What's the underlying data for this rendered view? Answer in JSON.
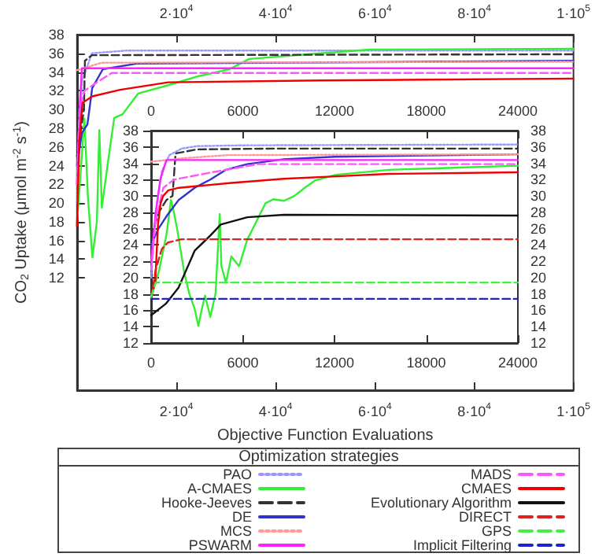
{
  "chart_data": [
    {
      "type": "line",
      "xlabel": "Objective Function Evaluations",
      "ylabel": "CO$_{2}$ Uptake (μmol m$^{-2}$ s$^{-1}$)",
      "xlim": [
        0,
        100000
      ],
      "xticks": [
        {
          "value": 20000,
          "label": "2·10$^{4}$"
        },
        {
          "value": 40000,
          "label": "4·10$^{4}$"
        },
        {
          "value": 60000,
          "label": "6·10$^{4}$"
        },
        {
          "value": 80000,
          "label": "8·10$^{4}$"
        },
        {
          "value": 100000,
          "label": "1·10$^{5}$"
        }
      ],
      "x2lim": [
        0,
        100000
      ],
      "x2ticks": [
        {
          "value": 20000,
          "label": "2·10$^{4}$"
        },
        {
          "value": 40000,
          "label": "4·10$^{4}$"
        },
        {
          "value": 60000,
          "label": "6·10$^{4}$"
        },
        {
          "value": 80000,
          "label": "8·10$^{4}$"
        },
        {
          "value": 100000,
          "label": "1·10$^{5}$"
        }
      ],
      "ylim": [
        0,
        38
      ],
      "yticks": [
        12,
        14,
        16,
        18,
        20,
        22,
        24,
        26,
        28,
        30,
        32,
        34,
        36,
        38
      ],
      "grid": false,
      "legend": false,
      "marker": "none",
      "series": [
        {
          "color": "#9999ff",
          "line_style": "dotted",
          "x": [
            0,
            1000,
            3000,
            10000,
            100000
          ],
          "values": [
            20,
            33,
            36,
            36.3,
            36.3
          ]
        },
        {
          "color": "#33ee33",
          "line_style": "solid",
          "x": [
            0,
            1500,
            2200,
            3100,
            4000,
            4500,
            5000,
            6300,
            7500,
            9200,
            12300,
            18400,
            24000,
            30700,
            34700,
            49000,
            59000,
            100000
          ],
          "values": [
            17.8,
            29,
            20.7,
            14.2,
            18,
            27.8,
            19.5,
            24.6,
            29.1,
            29.5,
            31.7,
            32.6,
            33.5,
            34.3,
            35.4,
            36,
            36.4,
            36.5
          ]
        },
        {
          "color": "#333333",
          "line_style": "dashed",
          "x": [
            0,
            1400,
            1600,
            3000,
            100000
          ],
          "values": [
            25,
            30,
            35.2,
            35.8,
            35.9
          ]
        },
        {
          "color": "#3333cc",
          "line_style": "solid",
          "x": [
            0,
            1000,
            2100,
            3070,
            5200,
            12000,
            100000
          ],
          "values": [
            24,
            27.5,
            28.4,
            32.3,
            34.3,
            34.9,
            35.2
          ]
        },
        {
          "color": "#ff9999",
          "line_style": "dotted",
          "x": [
            0,
            5000,
            100000
          ],
          "values": [
            34.2,
            35,
            35.1
          ]
        },
        {
          "color": "#ff22ff",
          "line_style": "solid",
          "x": [
            0,
            500,
            1000,
            100000
          ],
          "values": [
            22,
            30,
            34.4,
            34.4
          ]
        },
        {
          "color": "#ff55ff",
          "line_style": "dashed",
          "x": [
            0,
            500,
            1500,
            4000,
            7000,
            100000
          ],
          "values": [
            22,
            30,
            32,
            32.9,
            33.9,
            33.9
          ]
        },
        {
          "color": "#ee0000",
          "line_style": "solid",
          "x": [
            0,
            450,
            1100,
            3070,
            8700,
            18400,
            49000,
            100000
          ],
          "values": [
            17.5,
            26.5,
            30.7,
            31.4,
            32.1,
            32.9,
            33.1,
            33.3
          ]
        }
      ]
    },
    {
      "type": "line",
      "legend_title": "Optimization strategies",
      "xlim": [
        0,
        24000
      ],
      "xticks": [
        0,
        6000,
        12000,
        18000,
        24000
      ],
      "x2lim": [
        0,
        24000
      ],
      "x2ticks": [
        0,
        6000,
        12000,
        18000,
        24000
      ],
      "ylim": [
        12,
        38
      ],
      "yticks": [
        12,
        14,
        16,
        18,
        20,
        22,
        24,
        26,
        28,
        30,
        32,
        34,
        36,
        38
      ],
      "y2lim": [
        12,
        38
      ],
      "y2ticks": [
        12,
        14,
        16,
        18,
        20,
        22,
        24,
        26,
        28,
        30,
        32,
        34,
        36,
        38
      ],
      "grid": false,
      "legend": "bottom",
      "marker": "none",
      "series": [
        {
          "name": "PAO",
          "color": "#9999ff",
          "line_style": "dotted",
          "x": [
            0,
            300,
            700,
            1200,
            2000,
            3000,
            6000,
            24000
          ],
          "values": [
            20,
            28,
            33,
            35,
            35.8,
            36.1,
            36.2,
            36.3
          ]
        },
        {
          "name": "A-CMAES",
          "color": "#33ee33",
          "line_style": "solid",
          "x": [
            0,
            500,
            1000,
            1300,
            1475,
            1700,
            2160,
            2500,
            2850,
            3090,
            3300,
            3530,
            3875,
            4220,
            4490,
            4600,
            4900,
            5250,
            5760,
            6280,
            6790,
            7130,
            7480,
            8000,
            8680,
            9370,
            10050,
            10740,
            12100,
            15540,
            18970,
            24000
          ],
          "values": [
            17.8,
            20.7,
            25.2,
            29.5,
            28.1,
            26,
            20.7,
            18,
            16.2,
            14.1,
            16,
            17.8,
            15.2,
            18.1,
            27.8,
            21.4,
            19.4,
            22.6,
            21.4,
            24.6,
            26.5,
            27.8,
            29.1,
            29.6,
            29.4,
            30,
            31,
            31.9,
            32.6,
            33.2,
            33.4,
            33.7
          ]
        },
        {
          "name": "Hooke-Jeeves",
          "color": "#333333",
          "line_style": "dashed",
          "x": [
            0,
            500,
            1000,
            1400,
            1600,
            3000,
            8000,
            24000
          ],
          "values": [
            25,
            28,
            29.5,
            30,
            35.2,
            35.7,
            35.8,
            35.8
          ]
        },
        {
          "name": "DE",
          "color": "#3333cc",
          "line_style": "solid",
          "x": [
            0,
            450,
            1000,
            1800,
            2850,
            3875,
            4900,
            6280,
            8680,
            12000,
            24000
          ],
          "values": [
            24,
            25.9,
            27.5,
            29.5,
            31,
            32,
            33.2,
            33.9,
            34.5,
            34.8,
            35.1
          ]
        },
        {
          "name": "MCS",
          "color": "#ff9999",
          "line_style": "dotted",
          "x": [
            0,
            2000,
            5000,
            24000
          ],
          "values": [
            34.2,
            34.6,
            35,
            35.1
          ]
        },
        {
          "name": "PSWARM",
          "color": "#ff22ff",
          "line_style": "solid",
          "x": [
            0,
            300,
            600,
            1000,
            24000
          ],
          "values": [
            22,
            28,
            32,
            34.4,
            34.4
          ]
        },
        {
          "name": "MADS",
          "color": "#ff55ff",
          "line_style": "dashed",
          "x": [
            0,
            300,
            800,
            1500,
            4000,
            7000,
            24000
          ],
          "values": [
            21,
            27,
            31,
            32,
            32.9,
            33.9,
            33.9
          ]
        },
        {
          "name": "CMAES",
          "color": "#ee0000",
          "line_style": "solid",
          "x": [
            0,
            270,
            450,
            620,
            790,
            1130,
            1820,
            3530,
            5250,
            8680,
            12100,
            15540,
            24000
          ],
          "values": [
            17.5,
            19.4,
            26.5,
            29.1,
            30,
            30.7,
            31,
            31.3,
            31.6,
            32.1,
            32.4,
            32.7,
            32.9
          ]
        },
        {
          "name": "Evolutionary Algorithm",
          "color": "#111111",
          "line_style": "solid",
          "x": [
            0,
            960,
            1800,
            2850,
            3900,
            4560,
            6300,
            8700,
            24000
          ],
          "values": [
            15.4,
            16.8,
            18.8,
            23.3,
            25.2,
            26.5,
            27.4,
            27.7,
            27.6
          ]
        },
        {
          "name": "DIRECT",
          "color": "#dd2222",
          "line_style": "dashed",
          "x": [
            0,
            300,
            700,
            1100,
            2000,
            24000
          ],
          "values": [
            17.5,
            21,
            23.5,
            24.3,
            24.7,
            24.7
          ]
        },
        {
          "name": "GPS",
          "color": "#44ee44",
          "line_style": "dashed",
          "x": [
            0,
            300,
            24000
          ],
          "values": [
            17.6,
            19.4,
            19.4
          ]
        },
        {
          "name": "Implicit Filtering",
          "color": "#2222cc",
          "line_style": "dashed",
          "x": [
            0,
            24000
          ],
          "values": [
            17.4,
            17.4
          ]
        }
      ]
    }
  ]
}
